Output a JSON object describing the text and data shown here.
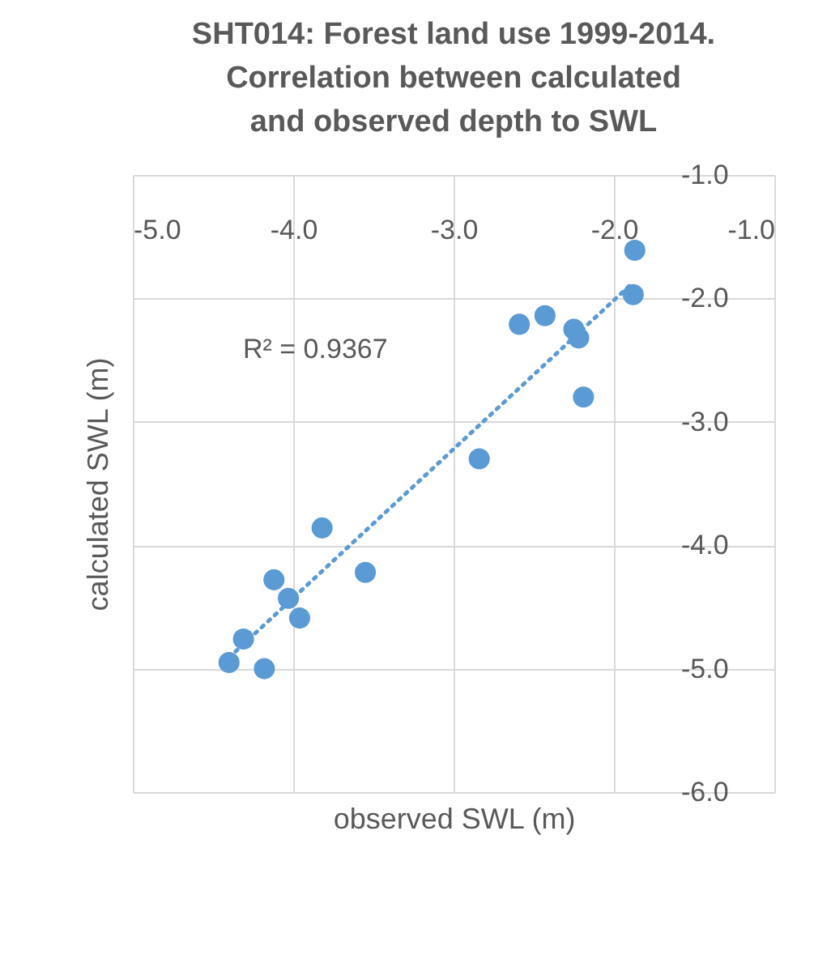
{
  "chart_data": {
    "type": "scatter",
    "title": "SHT014: Forest land use 1999-2014.\nCorrelation between calculated\nand observed depth to SWL",
    "xlabel": "observed SWL (m)",
    "ylabel": "calculated SWL (m)",
    "annotations": [
      "R² = 0.9367"
    ],
    "xlim": [
      -5,
      -1
    ],
    "ylim": [
      -6,
      -1
    ],
    "xticks": [
      {
        "value": -5,
        "label": "-5.0"
      },
      {
        "value": -4,
        "label": "-4.0"
      },
      {
        "value": -3,
        "label": "-3.0"
      },
      {
        "value": -2,
        "label": "-2.0"
      },
      {
        "value": -1,
        "label": "-1.0"
      }
    ],
    "yticks": [
      {
        "value": -6,
        "label": "-6.0"
      },
      {
        "value": -5,
        "label": "-5.0"
      },
      {
        "value": -4,
        "label": "-4.0"
      },
      {
        "value": -3,
        "label": "-3.0"
      },
      {
        "value": -2,
        "label": "-2.0"
      },
      {
        "value": -1,
        "label": "-1.0"
      }
    ],
    "grid": true,
    "marker": "circle",
    "series": [
      {
        "color": "#5b9bd5",
        "x": [
          -1.87,
          -1.88,
          -2.59,
          -2.43,
          -2.25,
          -2.22,
          -2.19,
          -2.84,
          -3.82,
          -3.55,
          -4.12,
          -4.03,
          -3.96,
          -4.31,
          -4.4,
          -4.18
        ],
        "values": [
          -1.61,
          -1.97,
          -2.21,
          -2.14,
          -2.25,
          -2.32,
          -2.8,
          -3.3,
          -3.86,
          -4.22,
          -4.28,
          -4.43,
          -4.59,
          -4.76,
          -4.95,
          -5.0
        ]
      },
      {
        "type": "line",
        "color": "#5b9bd5",
        "line_style": "dotted",
        "marker": "none",
        "x": [
          -4.4,
          -1.88
        ],
        "values": [
          -4.91,
          -1.87
        ]
      }
    ]
  }
}
